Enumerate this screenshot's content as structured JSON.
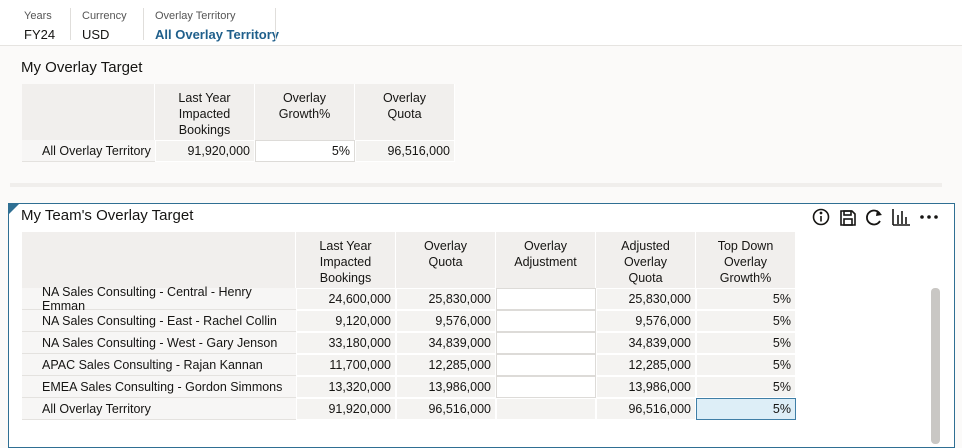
{
  "pov": [
    {
      "label": "Years",
      "value": "FY24"
    },
    {
      "label": "Currency",
      "value": "USD"
    },
    {
      "label": "Overlay Territory",
      "value": "All Overlay Territory"
    }
  ],
  "overlay_target": {
    "title": "My Overlay Target",
    "columns": [
      "Last Year Impacted Bookings",
      "Overlay Growth%",
      "Overlay Quota"
    ],
    "rows": [
      {
        "label": "All Overlay Territory",
        "cells": [
          "91,920,000",
          "5%",
          "96,516,000"
        ]
      }
    ]
  },
  "team_target": {
    "title": "My Team's Overlay Target",
    "columns": [
      "Last Year Impacted Bookings",
      "Overlay Quota",
      "Overlay Adjustment",
      "Adjusted Overlay Quota",
      "Top Down Overlay Growth%"
    ],
    "rows": [
      {
        "label": "NA Sales Consulting - Central - Henry Emman",
        "last_year": "24,600,000",
        "overlay_quota": "25,830,000",
        "adjusted_quota": "25,830,000",
        "growth": "5%"
      },
      {
        "label": "NA Sales Consulting - East - Rachel Collin",
        "last_year": "9,120,000",
        "overlay_quota": "9,576,000",
        "adjusted_quota": "9,576,000",
        "growth": "5%"
      },
      {
        "label": "NA Sales Consulting - West - Gary Jenson",
        "last_year": "33,180,000",
        "overlay_quota": "34,839,000",
        "adjusted_quota": "34,839,000",
        "growth": "5%"
      },
      {
        "label": "APAC Sales Consulting - Rajan Kannan",
        "last_year": "11,700,000",
        "overlay_quota": "12,285,000",
        "adjusted_quota": "12,285,000",
        "growth": "5%"
      },
      {
        "label": "EMEA Sales Consulting - Gordon Simmons",
        "last_year": "13,320,000",
        "overlay_quota": "13,986,000",
        "adjusted_quota": "13,986,000",
        "growth": "5%"
      },
      {
        "label": "All Overlay Territory",
        "last_year": "91,920,000",
        "overlay_quota": "96,516,000",
        "adjusted_quota": "96,516,000",
        "growth": "5%"
      }
    ]
  }
}
